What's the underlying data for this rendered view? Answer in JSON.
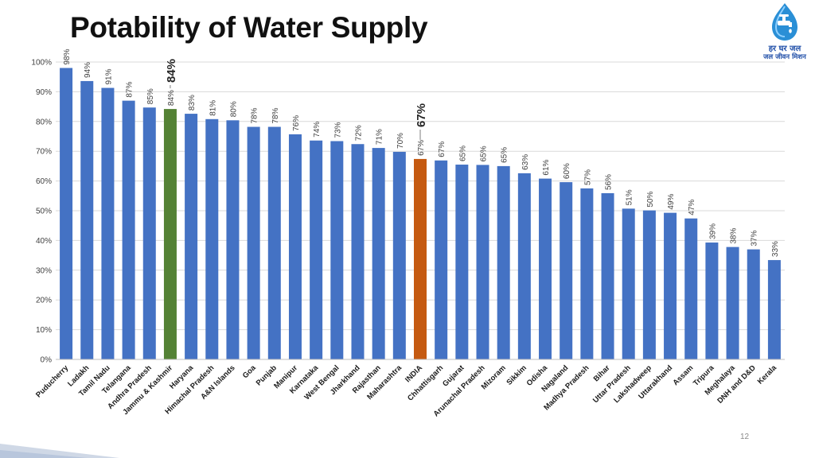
{
  "slide": {
    "title": "Potability of Water Supply",
    "page_number": "12"
  },
  "logo": {
    "line1": "हर घर जल",
    "line2": "जल जीवन मिशन"
  },
  "colors": {
    "bar": "#4472c4",
    "highlight": "#548235",
    "india": "#c55a11",
    "gridline": "#d9d9d9",
    "logo": "#1f4ea8"
  },
  "chart_data": {
    "type": "bar",
    "title": "Potability of Water Supply",
    "xlabel": "",
    "ylabel": "",
    "ylim": [
      0,
      100
    ],
    "y_ticks": [
      "0%",
      "10%",
      "20%",
      "30%",
      "40%",
      "50%",
      "60%",
      "70%",
      "80%",
      "90%",
      "100%"
    ],
    "grid": true,
    "categories": [
      "Puducherry",
      "Ladakh",
      "Tamil Nadu",
      "Telangana",
      "Andhra Pradesh",
      "Jammu & Kashmir",
      "Haryana",
      "Himachal Pradesh",
      "A&N Islands",
      "Goa",
      "Punjab",
      "Manipur",
      "Karnataka",
      "West Bengal",
      "Jharkhand",
      "Rajasthan",
      "Maharashtra",
      "INDIA",
      "Chhattisgarh",
      "Gujarat",
      "Arunachal Pradesh",
      "Mizoram",
      "Sikkim",
      "Odisha",
      "Nagaland",
      "Madhya Pradesh",
      "Bihar",
      "Uttar Pradesh",
      "Lakshadweep",
      "Uttarakhand",
      "Assam",
      "Tripura",
      "Meghalaya",
      "DNH and D&D",
      "Kerala"
    ],
    "values": [
      98,
      93.6,
      91.3,
      87,
      84.7,
      84.2,
      82.6,
      80.8,
      80.4,
      78.2,
      78.2,
      75.7,
      73.6,
      73.4,
      72.4,
      71.1,
      69.8,
      67.4,
      66.9,
      65.5,
      65.4,
      65,
      62.6,
      60.8,
      59.6,
      57.5,
      55.9,
      50.7,
      50.1,
      49.3,
      47.4,
      39.3,
      37.8,
      37,
      33.4
    ],
    "data_labels": [
      "98%",
      "94%",
      "91%",
      "87%",
      "85%",
      "84%",
      "83%",
      "81%",
      "80%",
      "78%",
      "78%",
      "76%",
      "74%",
      "73%",
      "72%",
      "71%",
      "70%",
      "67%",
      "67%",
      "65%",
      "65%",
      "65%",
      "63%",
      "61%",
      "60%",
      "57%",
      "56%",
      "51%",
      "50%",
      "49%",
      "47%",
      "39%",
      "38%",
      "37%",
      "33%"
    ],
    "highlight": {
      "Jammu & Kashmir": "green",
      "INDIA": "orange"
    },
    "callouts": [
      {
        "category": "Jammu & Kashmir",
        "label": "84%"
      },
      {
        "category": "INDIA",
        "label": "67%"
      }
    ]
  }
}
